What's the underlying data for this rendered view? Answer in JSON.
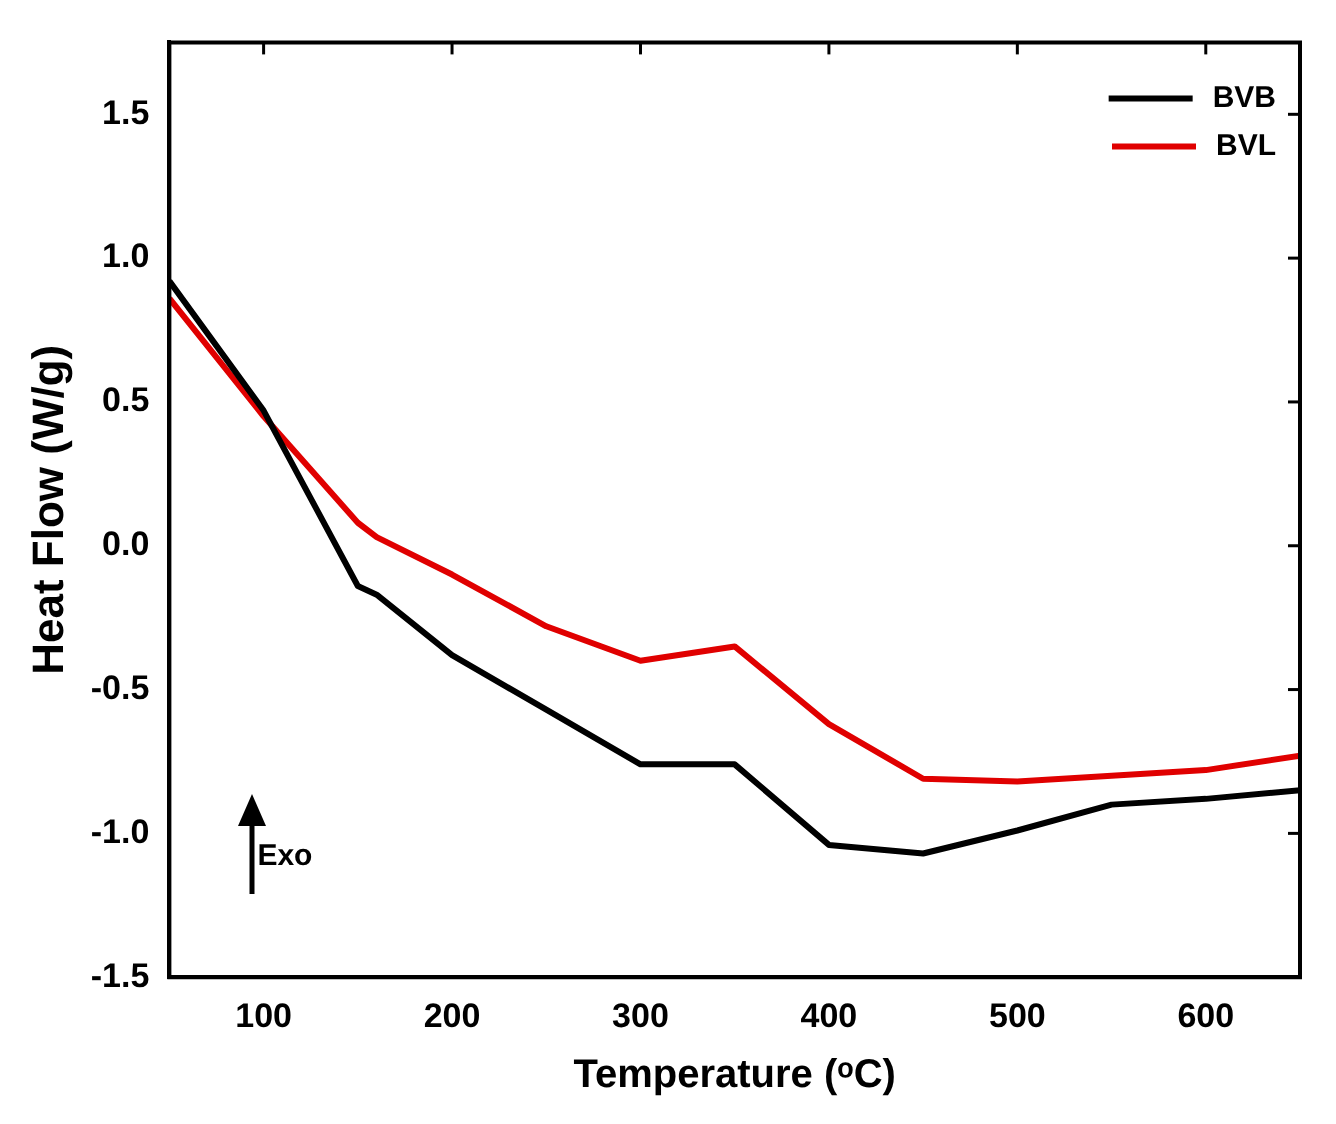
{
  "chart_data": {
    "type": "line",
    "xlabel": "Temperature (ᵒC)",
    "ylabel": "Heat Flow (W/g)",
    "xlim": [
      50,
      650
    ],
    "xticks": [
      100,
      200,
      300,
      400,
      500,
      600
    ],
    "ylim": [
      -1.5,
      1.75
    ],
    "yticks": [
      -1.5,
      {
        "value": -1,
        "label": "-1.0"
      },
      -0.5,
      {
        "value": 0,
        "label": "0.0"
      },
      0.5,
      {
        "value": 1,
        "label": "1.0"
      },
      1.5
    ],
    "grid": false,
    "legend": "top right",
    "marker": "none",
    "line_style": "solid",
    "annotations": [
      "Exo"
    ],
    "series": [
      {
        "name": "BVB",
        "color": "#000000",
        "x": [
          50,
          100,
          150,
          160,
          200,
          250,
          300,
          350,
          400,
          450,
          500,
          550,
          600,
          650
        ],
        "values": [
          0.92,
          0.47,
          -0.14,
          -0.17,
          -0.38,
          -0.57,
          -0.76,
          -0.76,
          -1.04,
          -1.07,
          -0.99,
          -0.9,
          -0.88,
          -0.85
        ]
      },
      {
        "name": "BVL",
        "color": "#e00000",
        "x": [
          50,
          100,
          150,
          160,
          200,
          250,
          300,
          350,
          400,
          450,
          500,
          550,
          600,
          650
        ],
        "values": [
          0.86,
          0.45,
          0.08,
          0.03,
          -0.1,
          -0.28,
          -0.4,
          -0.35,
          -0.62,
          -0.81,
          -0.82,
          -0.8,
          -0.78,
          -0.73
        ]
      }
    ]
  }
}
